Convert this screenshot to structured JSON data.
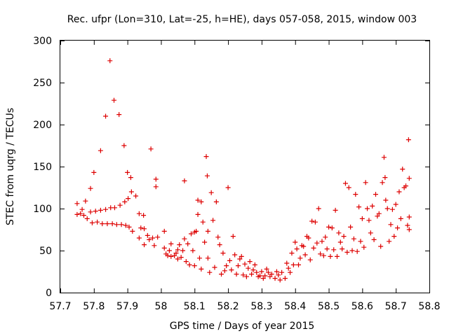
{
  "chart_data": {
    "type": "scatter",
    "title": "Rec. ufpr (Lon=310, Lat=-25, h=HE), days 057-058, 2015, window 003",
    "xlabel": "GPS time / Days of year 2015",
    "ylabel": "STEC from uqrg / TECUs",
    "xlim": [
      57.7,
      58.8
    ],
    "ylim": [
      0,
      300
    ],
    "xticks": [
      57.7,
      57.8,
      57.9,
      58.0,
      58.1,
      58.2,
      58.3,
      58.4,
      58.5,
      58.6,
      58.7,
      58.8
    ],
    "xtick_labels": [
      "57.7",
      "57.8",
      "57.9",
      "58",
      "58.1",
      "58.2",
      "58.3",
      "58.4",
      "58.5",
      "58.6",
      "58.7",
      "58.8"
    ],
    "yticks": [
      0,
      50,
      100,
      150,
      200,
      250,
      300
    ],
    "ytick_labels": [
      "0",
      "50",
      "100",
      "150",
      "200",
      "250",
      "300"
    ],
    "grid": false,
    "legend": "none",
    "marker": "plus",
    "color": "#dd0000",
    "points": [
      [
        57.75,
        106
      ],
      [
        57.75,
        93
      ],
      [
        57.76,
        94
      ],
      [
        57.765,
        99
      ],
      [
        57.77,
        92
      ],
      [
        57.775,
        109
      ],
      [
        57.78,
        88
      ],
      [
        57.79,
        124
      ],
      [
        57.79,
        96
      ],
      [
        57.795,
        83
      ],
      [
        57.8,
        143
      ],
      [
        57.805,
        97
      ],
      [
        57.81,
        84
      ],
      [
        57.82,
        169
      ],
      [
        57.82,
        98
      ],
      [
        57.825,
        82
      ],
      [
        57.835,
        210
      ],
      [
        57.835,
        99
      ],
      [
        57.84,
        82
      ],
      [
        57.848,
        276
      ],
      [
        57.85,
        101
      ],
      [
        57.855,
        82
      ],
      [
        57.86,
        229
      ],
      [
        57.862,
        101
      ],
      [
        57.868,
        81
      ],
      [
        57.875,
        212
      ],
      [
        57.878,
        104
      ],
      [
        57.882,
        81
      ],
      [
        57.89,
        175
      ],
      [
        57.892,
        108
      ],
      [
        57.895,
        80
      ],
      [
        57.9,
        143
      ],
      [
        57.902,
        112
      ],
      [
        57.905,
        78
      ],
      [
        57.91,
        137
      ],
      [
        57.912,
        120
      ],
      [
        57.915,
        73
      ],
      [
        57.925,
        115
      ],
      [
        57.935,
        94
      ],
      [
        57.935,
        65
      ],
      [
        57.94,
        77
      ],
      [
        57.948,
        92
      ],
      [
        57.95,
        76
      ],
      [
        57.95,
        57
      ],
      [
        57.96,
        68
      ],
      [
        57.965,
        63
      ],
      [
        57.97,
        171
      ],
      [
        57.975,
        65
      ],
      [
        57.98,
        56
      ],
      [
        57.985,
        135
      ],
      [
        57.985,
        126
      ],
      [
        57.99,
        66
      ],
      [
        58.01,
        73
      ],
      [
        58.01,
        53
      ],
      [
        58.015,
        46
      ],
      [
        58.02,
        44
      ],
      [
        58.025,
        50
      ],
      [
        58.03,
        58
      ],
      [
        58.03,
        43
      ],
      [
        58.04,
        44
      ],
      [
        58.045,
        47
      ],
      [
        58.05,
        51
      ],
      [
        58.05,
        40
      ],
      [
        58.055,
        57
      ],
      [
        58.06,
        42
      ],
      [
        58.065,
        50
      ],
      [
        58.07,
        133
      ],
      [
        58.07,
        64
      ],
      [
        58.075,
        37
      ],
      [
        58.08,
        58
      ],
      [
        58.085,
        33
      ],
      [
        58.09,
        70
      ],
      [
        58.095,
        50
      ],
      [
        58.1,
        72
      ],
      [
        58.1,
        32
      ],
      [
        58.105,
        73
      ],
      [
        58.11,
        110
      ],
      [
        58.11,
        93
      ],
      [
        58.115,
        41
      ],
      [
        58.12,
        108
      ],
      [
        58.12,
        28
      ],
      [
        58.125,
        84
      ],
      [
        58.13,
        60
      ],
      [
        58.135,
        162
      ],
      [
        58.138,
        139
      ],
      [
        58.14,
        73
      ],
      [
        58.14,
        41
      ],
      [
        58.145,
        24
      ],
      [
        58.15,
        119
      ],
      [
        58.155,
        86
      ],
      [
        58.16,
        30
      ],
      [
        58.165,
        108
      ],
      [
        58.17,
        66
      ],
      [
        58.175,
        57
      ],
      [
        58.18,
        22
      ],
      [
        58.185,
        47
      ],
      [
        58.19,
        26
      ],
      [
        58.195,
        32
      ],
      [
        58.2,
        125
      ],
      [
        58.205,
        38
      ],
      [
        58.21,
        27
      ],
      [
        58.215,
        67
      ],
      [
        58.22,
        45
      ],
      [
        58.225,
        22
      ],
      [
        58.23,
        32
      ],
      [
        58.235,
        40
      ],
      [
        58.24,
        43
      ],
      [
        58.245,
        21
      ],
      [
        58.25,
        34
      ],
      [
        58.255,
        19
      ],
      [
        58.26,
        29
      ],
      [
        58.265,
        37
      ],
      [
        58.27,
        22
      ],
      [
        58.275,
        27
      ],
      [
        58.28,
        33
      ],
      [
        58.285,
        24
      ],
      [
        58.29,
        19
      ],
      [
        58.295,
        20
      ],
      [
        58.3,
        25
      ],
      [
        58.305,
        17
      ],
      [
        58.31,
        20
      ],
      [
        58.315,
        28
      ],
      [
        58.32,
        24
      ],
      [
        58.325,
        19
      ],
      [
        58.33,
        22
      ],
      [
        58.34,
        17
      ],
      [
        58.345,
        25
      ],
      [
        58.35,
        21
      ],
      [
        58.355,
        15
      ],
      [
        58.36,
        24
      ],
      [
        58.37,
        17
      ],
      [
        58.375,
        35
      ],
      [
        58.38,
        29
      ],
      [
        58.385,
        24
      ],
      [
        58.39,
        47
      ],
      [
        58.395,
        33
      ],
      [
        58.4,
        60
      ],
      [
        58.405,
        52
      ],
      [
        58.41,
        33
      ],
      [
        58.415,
        41
      ],
      [
        58.42,
        56
      ],
      [
        58.425,
        55
      ],
      [
        58.43,
        45
      ],
      [
        58.435,
        67
      ],
      [
        58.44,
        65
      ],
      [
        58.445,
        39
      ],
      [
        58.45,
        85
      ],
      [
        58.455,
        53
      ],
      [
        58.46,
        84
      ],
      [
        58.465,
        59
      ],
      [
        58.47,
        100
      ],
      [
        58.475,
        46
      ],
      [
        58.48,
        61
      ],
      [
        58.485,
        44
      ],
      [
        58.49,
        66
      ],
      [
        58.495,
        52
      ],
      [
        58.5,
        78
      ],
      [
        58.505,
        43
      ],
      [
        58.51,
        77
      ],
      [
        58.515,
        51
      ],
      [
        58.52,
        98
      ],
      [
        58.525,
        43
      ],
      [
        58.53,
        71
      ],
      [
        58.535,
        60
      ],
      [
        58.54,
        52
      ],
      [
        58.545,
        67
      ],
      [
        58.55,
        130
      ],
      [
        58.555,
        48
      ],
      [
        58.56,
        125
      ],
      [
        58.565,
        78
      ],
      [
        58.57,
        50
      ],
      [
        58.575,
        64
      ],
      [
        58.58,
        117
      ],
      [
        58.585,
        49
      ],
      [
        58.59,
        102
      ],
      [
        58.595,
        61
      ],
      [
        58.6,
        88
      ],
      [
        58.605,
        54
      ],
      [
        58.61,
        131
      ],
      [
        58.615,
        100
      ],
      [
        58.62,
        86
      ],
      [
        58.625,
        71
      ],
      [
        58.63,
        103
      ],
      [
        58.635,
        63
      ],
      [
        58.64,
        117
      ],
      [
        58.645,
        91
      ],
      [
        58.65,
        94
      ],
      [
        58.655,
        55
      ],
      [
        58.66,
        131
      ],
      [
        58.665,
        161
      ],
      [
        58.668,
        137
      ],
      [
        58.67,
        110
      ],
      [
        58.675,
        100
      ],
      [
        58.68,
        61
      ],
      [
        58.685,
        81
      ],
      [
        58.69,
        99
      ],
      [
        58.695,
        67
      ],
      [
        58.7,
        105
      ],
      [
        58.705,
        77
      ],
      [
        58.71,
        120
      ],
      [
        58.715,
        88
      ],
      [
        58.72,
        147
      ],
      [
        58.725,
        125
      ],
      [
        58.73,
        127
      ],
      [
        58.735,
        80
      ],
      [
        58.738,
        182
      ],
      [
        58.74,
        136
      ],
      [
        58.74,
        90
      ],
      [
        58.74,
        75
      ]
    ]
  }
}
